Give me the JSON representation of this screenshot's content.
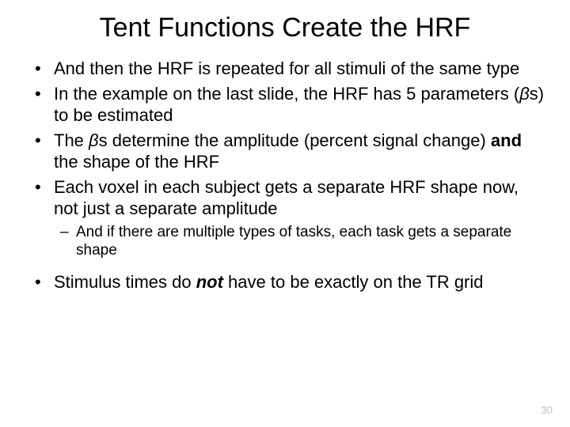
{
  "title": "Tent Functions Create the HRF",
  "bullets": {
    "b0": {
      "pre": "And then the HRF is repeated for all stimuli of the same type"
    },
    "b1": {
      "pre": "In the example on the last slide, the HRF has 5 parameters (",
      "beta": "β",
      "s": "s",
      "post": ") to be estimated"
    },
    "b2": {
      "pre": "The ",
      "beta": "β",
      "s": "s",
      "mid": " determine the amplitude (percent signal change) ",
      "and": "and",
      "post": " the shape of the HRF"
    },
    "b3": {
      "pre": "Each voxel in each subject gets a separate HRF shape now, not just a separate amplitude"
    },
    "b3sub": {
      "pre": "And if there are multiple types of tasks, each task gets a separate shape"
    },
    "b4": {
      "pre": "Stimulus times do ",
      "not": "not",
      "post": " have to be exactly on the TR grid"
    }
  },
  "pageNumber": "30",
  "colors": {
    "bg": "#ffffff",
    "text": "#000000",
    "pageNum": "#bfbfbf"
  },
  "fonts": {
    "title_size": 34,
    "bullet_size": 22,
    "sub_size": 19,
    "page_size": 13
  }
}
